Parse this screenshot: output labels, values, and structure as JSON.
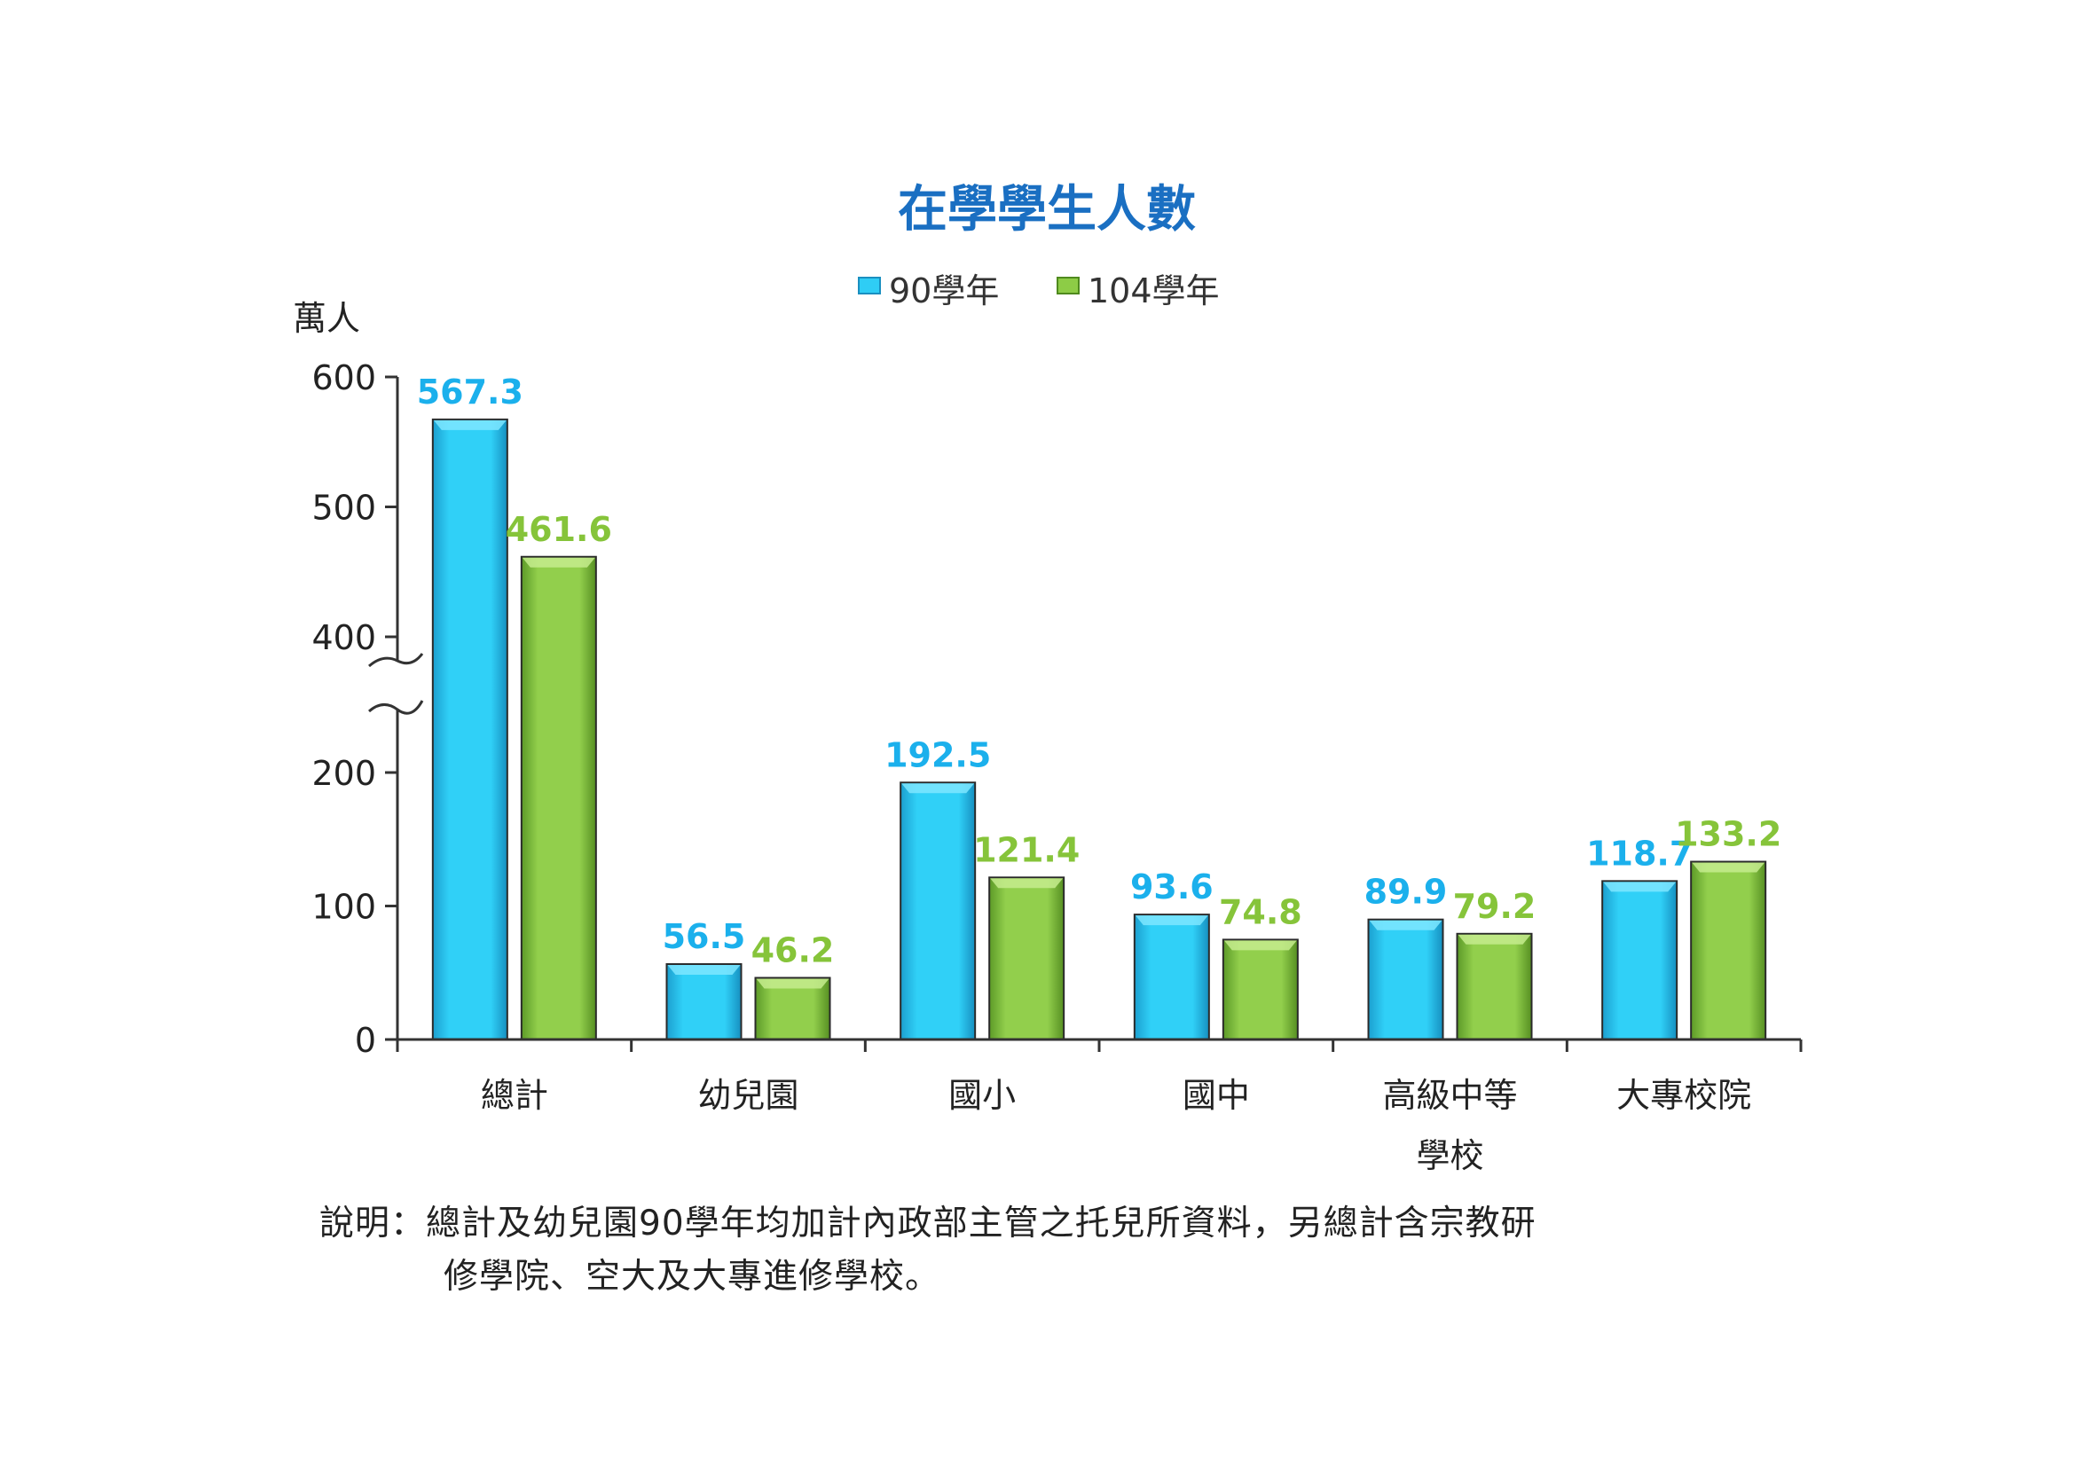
{
  "chart_data": {
    "type": "bar",
    "title": "在學學生人數",
    "ylabel": "萬人",
    "categories": [
      "總計",
      "幼兒園",
      "國小",
      "國中",
      "高級中等學校",
      "大專校院"
    ],
    "category_lines": [
      [
        "總計"
      ],
      [
        "幼兒園"
      ],
      [
        "國小"
      ],
      [
        "國中"
      ],
      [
        "高級中等",
        "學校"
      ],
      [
        "大專校院"
      ]
    ],
    "series": [
      {
        "name": "90學年",
        "values": [
          567.3,
          56.5,
          192.5,
          93.6,
          89.9,
          118.7
        ],
        "labels": [
          "567.3",
          "56.5",
          "192.5",
          "93.6",
          "89.9",
          "118.7"
        ]
      },
      {
        "name": "104學年",
        "values": [
          461.6,
          46.2,
          121.4,
          74.8,
          79.2,
          133.2
        ],
        "labels": [
          "461.6",
          "46.2",
          "121.4",
          "74.8",
          "79.2",
          "133.2"
        ]
      }
    ],
    "y_ticks": [
      "0",
      "100",
      "200",
      "400",
      "500",
      "600"
    ],
    "ylim": [
      0,
      600
    ],
    "axis_break": [
      250,
      380
    ],
    "legend_position": "top-center",
    "grid": false
  },
  "colors": {
    "series1": "#2fcdf5",
    "series1_label": "#1bb0ec",
    "series2": "#8dcc46",
    "series2_label": "#86c43a",
    "title": "#1a6fc2",
    "axis": "#333333"
  },
  "note": {
    "line1": "說明：總計及幼兒園90學年均加計內政部主管之托兒所資料，另總計含宗教研",
    "line2": "修學院、空大及大專進修學校。"
  }
}
